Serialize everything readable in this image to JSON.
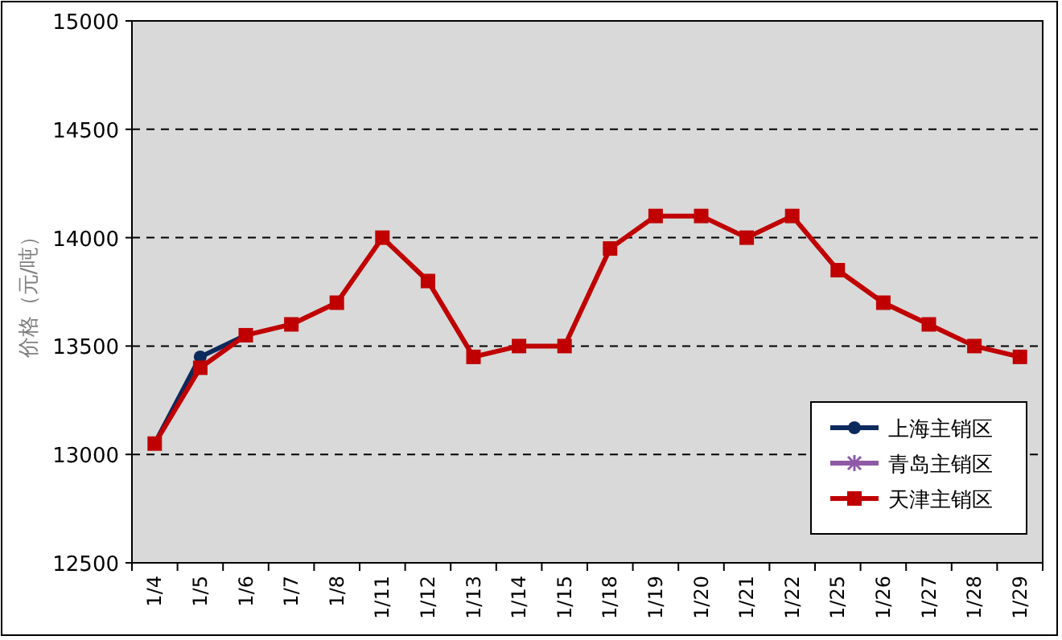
{
  "chart_data": {
    "type": "line",
    "ylabel": "价格（元/吨）",
    "categories": [
      "1/4",
      "1/5",
      "1/6",
      "1/7",
      "1/8",
      "1/11",
      "1/12",
      "1/13",
      "1/14",
      "1/15",
      "1/18",
      "1/19",
      "1/20",
      "1/21",
      "1/22",
      "1/25",
      "1/26",
      "1/27",
      "1/28",
      "1/29"
    ],
    "series": [
      {
        "name": "上海主销区",
        "color": "#0d2a5c",
        "marker": "circle",
        "values": [
          13050,
          13450,
          13550,
          null,
          null,
          null,
          null,
          null,
          null,
          null,
          null,
          null,
          null,
          null,
          null,
          null,
          null,
          null,
          null,
          null
        ]
      },
      {
        "name": "青岛主销区",
        "color": "#8e5aa6",
        "marker": "cross",
        "values": [
          null,
          null,
          null,
          null,
          null,
          null,
          null,
          null,
          null,
          null,
          null,
          null,
          null,
          null,
          null,
          null,
          null,
          null,
          null,
          null
        ]
      },
      {
        "name": "天津主销区",
        "color": "#c00000",
        "marker": "square",
        "values": [
          13050,
          13400,
          13550,
          13600,
          13700,
          14000,
          13800,
          13450,
          13500,
          13500,
          13950,
          14100,
          14100,
          14000,
          14100,
          13850,
          13700,
          13600,
          13500,
          13450
        ]
      }
    ],
    "ylim": [
      12500,
      15000
    ],
    "yticks": [
      12500,
      13000,
      13500,
      14000,
      14500,
      15000
    ],
    "grid": "y",
    "legend": "bottom right"
  }
}
